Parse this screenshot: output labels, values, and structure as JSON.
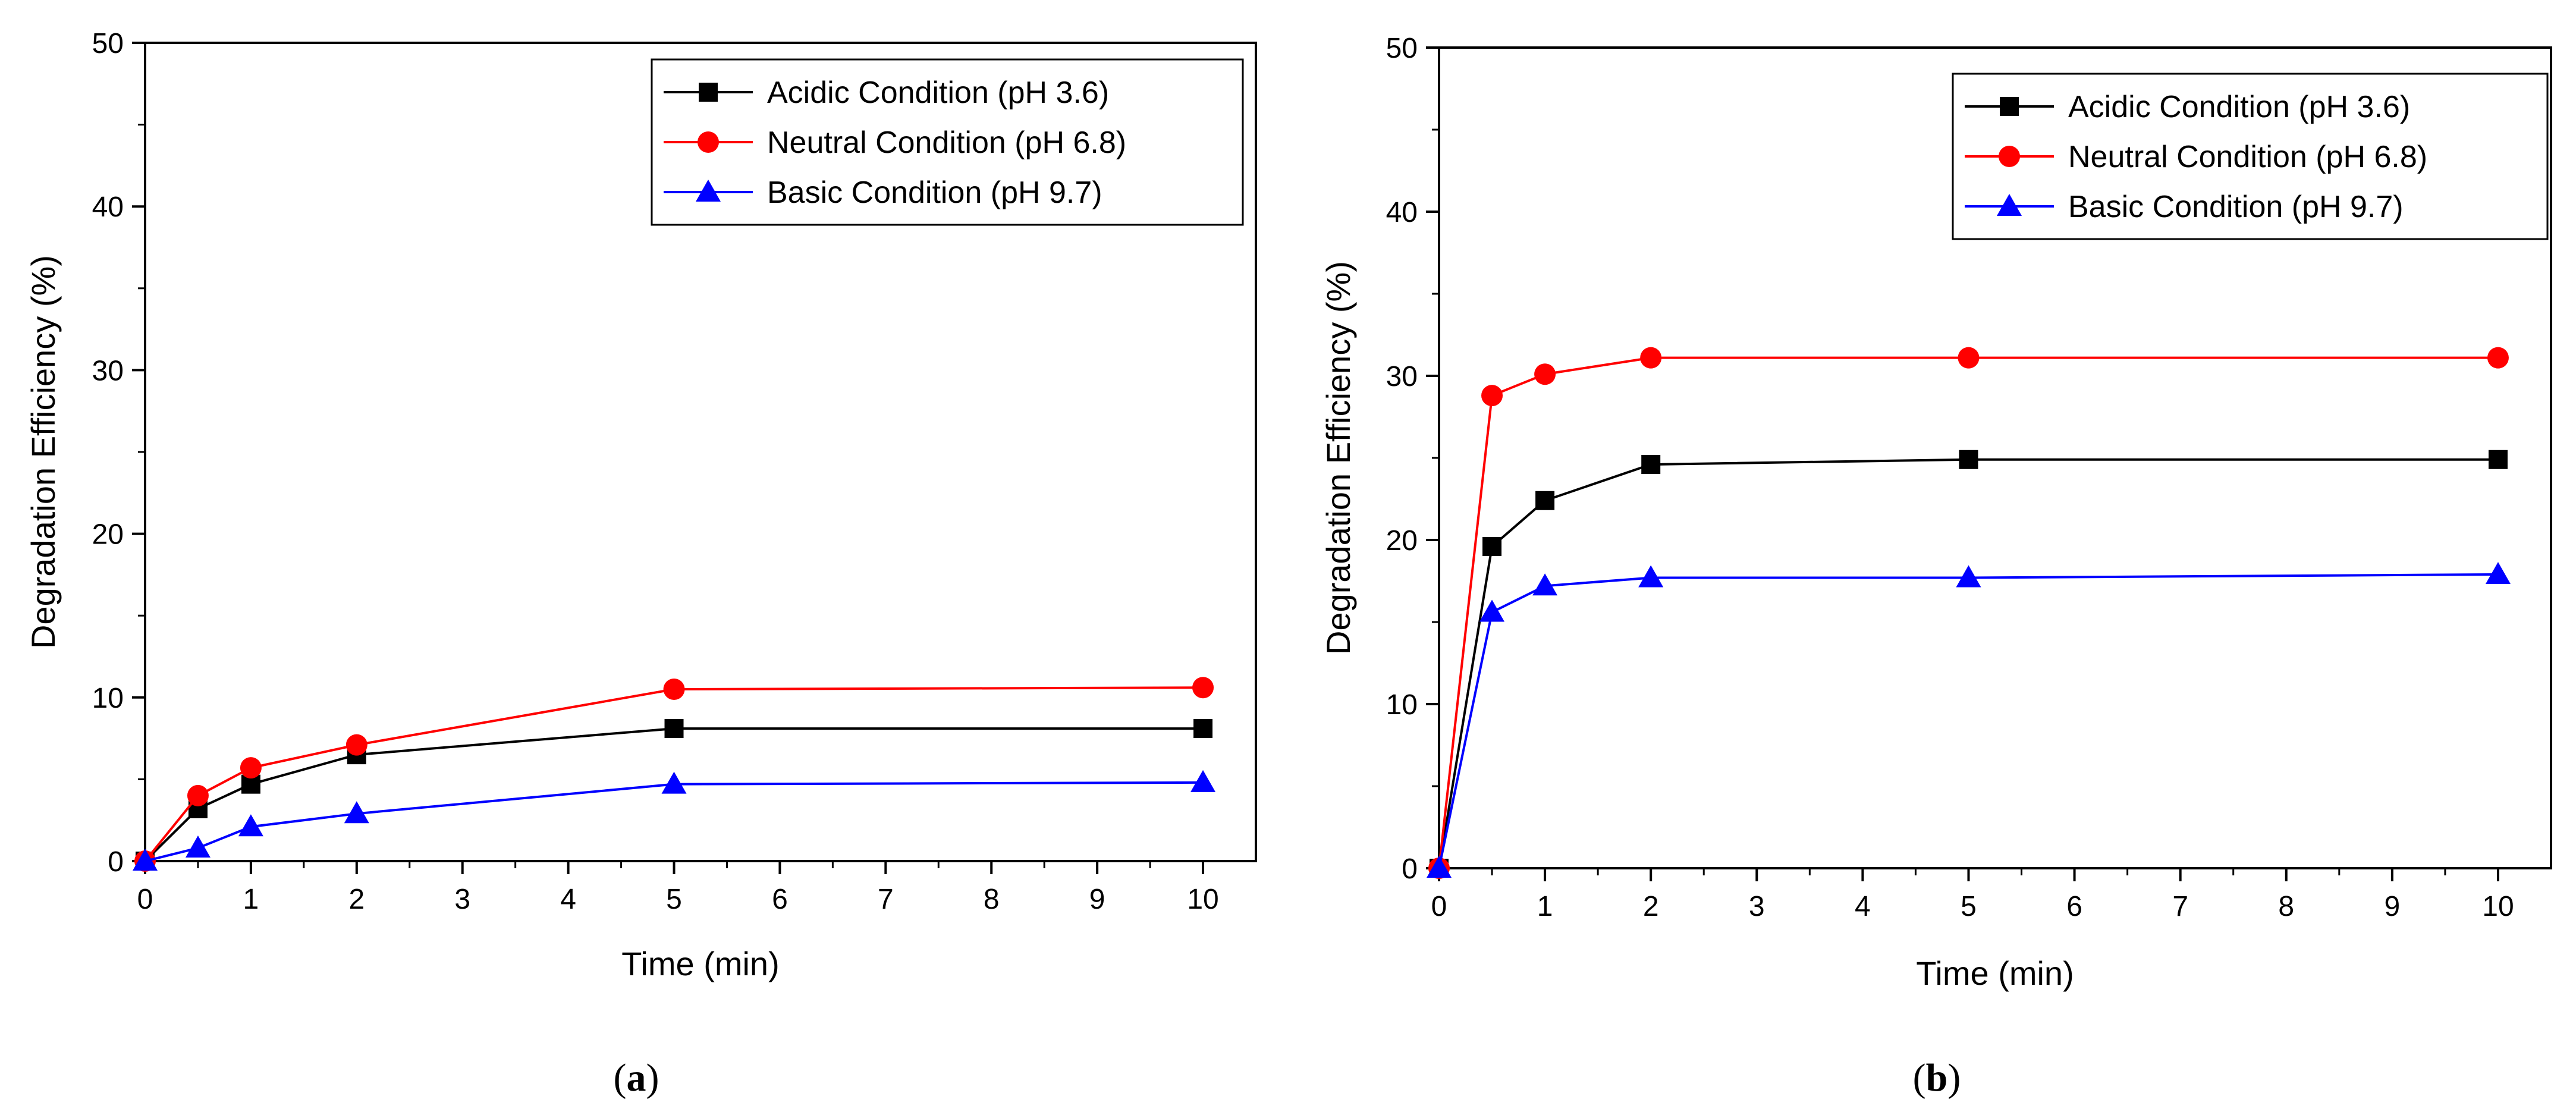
{
  "chart_data": [
    {
      "type": "line",
      "panel": "a",
      "caption_open": "(",
      "caption_letter": "a",
      "caption_close": ")",
      "xlabel": "Time (min)",
      "ylabel": "Degradation Efficiency (%)",
      "xlim": [
        0,
        10.5
      ],
      "ylim": [
        0,
        50
      ],
      "xticks": [
        0,
        1,
        2,
        3,
        4,
        5,
        6,
        7,
        8,
        9,
        10
      ],
      "yticks": [
        0,
        10,
        20,
        30,
        40,
        50
      ],
      "legend_position": "top-right",
      "series": [
        {
          "name": "Acidic Condition (pH 3.6)",
          "color": "#000000",
          "marker": "square",
          "x": [
            0,
            0.5,
            1,
            2,
            5,
            10
          ],
          "values": [
            0,
            3.2,
            4.7,
            6.5,
            8.1,
            8.1
          ]
        },
        {
          "name": "Neutral Condition (pH 6.8)",
          "color": "#ff0000",
          "marker": "circle",
          "x": [
            0,
            0.5,
            1,
            2,
            5,
            10
          ],
          "values": [
            0,
            4.0,
            5.7,
            7.1,
            10.5,
            10.6
          ]
        },
        {
          "name": "Basic Condition (pH 9.7)",
          "color": "#0000ff",
          "marker": "triangle",
          "x": [
            0,
            0.5,
            1,
            2,
            5,
            10
          ],
          "values": [
            0,
            0.8,
            2.1,
            2.9,
            4.7,
            4.8
          ]
        }
      ]
    },
    {
      "type": "line",
      "panel": "b",
      "caption_open": "(",
      "caption_letter": "b",
      "caption_close": ")",
      "xlabel": "Time (min)",
      "ylabel": "Degradation Efficiency (%)",
      "xlim": [
        0,
        10.5
      ],
      "ylim": [
        0,
        50
      ],
      "xticks": [
        0,
        1,
        2,
        3,
        4,
        5,
        6,
        7,
        8,
        9,
        10
      ],
      "yticks": [
        0,
        10,
        20,
        30,
        40,
        50
      ],
      "legend_position": "top-right",
      "series": [
        {
          "name": "Acidic Condition (pH 3.6)",
          "color": "#000000",
          "marker": "square",
          "x": [
            0,
            0.5,
            1,
            2,
            5,
            10
          ],
          "values": [
            0,
            19.6,
            22.4,
            24.6,
            24.9,
            24.9
          ]
        },
        {
          "name": "Neutral Condition (pH 6.8)",
          "color": "#ff0000",
          "marker": "circle",
          "x": [
            0,
            0.5,
            1,
            2,
            5,
            10
          ],
          "values": [
            0,
            28.8,
            30.1,
            31.1,
            31.1,
            31.1
          ]
        },
        {
          "name": "Basic Condition (pH 9.7)",
          "color": "#0000ff",
          "marker": "triangle",
          "x": [
            0,
            0.5,
            1,
            2,
            5,
            10
          ],
          "values": [
            0,
            15.6,
            17.2,
            17.7,
            17.7,
            17.9
          ]
        }
      ]
    }
  ]
}
